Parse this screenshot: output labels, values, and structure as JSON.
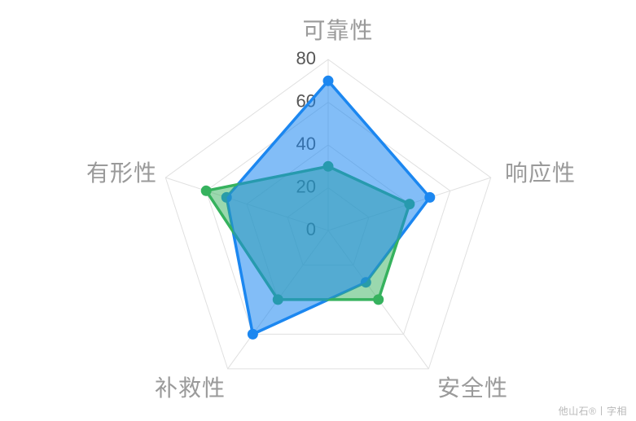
{
  "watermark": "他山石®丨字相",
  "palette": {
    "blue": "#1c87f0",
    "green": "#36b25e",
    "grid": "#e0e0e0",
    "axis_label": "#9a9a9a",
    "tick_label": "#565656",
    "watermark": "#b9b9b9",
    "background": "#ffffff"
  },
  "chart_data": {
    "type": "radar",
    "title": "",
    "legend_position": "none",
    "grid": "pentagon-rings",
    "ring_count": 4,
    "axis_min": 0,
    "axis_max": 80,
    "axis_ticks": [
      0,
      20,
      40,
      60,
      80
    ],
    "indicators": [
      {
        "label": "可靠性",
        "max": 80
      },
      {
        "label": "响应性",
        "max": 80
      },
      {
        "label": "安全性",
        "max": 80
      },
      {
        "label": "补救性",
        "max": 80
      },
      {
        "label": "有形性",
        "max": 80
      }
    ],
    "series": [
      {
        "id": "blue",
        "color": "#1c87f0",
        "values": [
          70,
          50,
          30,
          60,
          50
        ]
      },
      {
        "id": "green",
        "color": "#36b25e",
        "values": [
          30,
          40,
          40,
          40,
          60
        ]
      }
    ]
  }
}
